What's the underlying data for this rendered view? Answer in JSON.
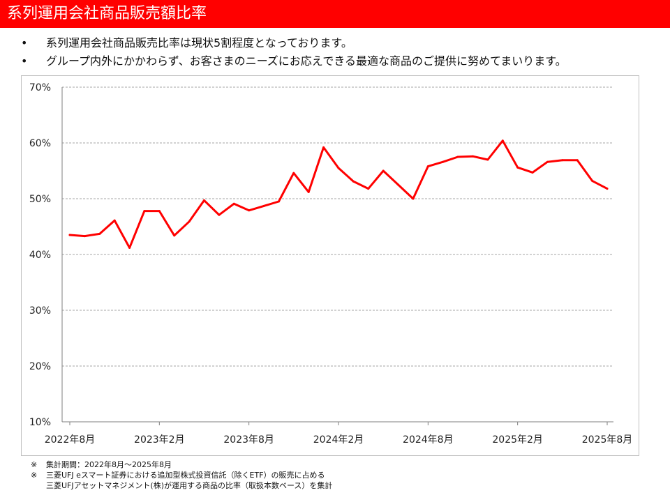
{
  "header": {
    "title": "系列運用会社商品販売額比率"
  },
  "bullets": [
    "系列運用会社商品販売比率は現状5割程度となっております。",
    "グループ内外にかかわらず、お客さまのニーズにお応えできる最適な商品のご提供に努めてまいります。"
  ],
  "bullet_mark": "•",
  "notes": [
    {
      "mark": "※",
      "lines": [
        "集計期間：2022年8月～2025年8月"
      ]
    },
    {
      "mark": "※",
      "lines": [
        "三菱UFJ eスマート証券における追加型株式投資信託（除くETF）の販売に占める",
        "三菱UFJアセットマネジメント(株)が運用する商品の比率（取扱本数ベース）を集計"
      ]
    }
  ],
  "chart_data": {
    "type": "line",
    "line_color": "#ff0000",
    "grid": true,
    "ylim": [
      10,
      70
    ],
    "yticks": [
      10,
      20,
      30,
      40,
      50,
      60,
      70
    ],
    "ytick_labels": [
      "10%",
      "20%",
      "30%",
      "40%",
      "50%",
      "60%",
      "70%"
    ],
    "xtick_indices": [
      0,
      6,
      12,
      18,
      24,
      30,
      36
    ],
    "xtick_labels": [
      "2022年8月",
      "2023年2月",
      "2023年8月",
      "2024年2月",
      "2024年8月",
      "2025年2月",
      "2025年8月"
    ],
    "x": [
      "2022-08",
      "2022-09",
      "2022-10",
      "2022-11",
      "2022-12",
      "2023-01",
      "2023-02",
      "2023-03",
      "2023-04",
      "2023-05",
      "2023-06",
      "2023-07",
      "2023-08",
      "2023-09",
      "2023-10",
      "2023-11",
      "2023-12",
      "2024-01",
      "2024-02",
      "2024-03",
      "2024-04",
      "2024-05",
      "2024-06",
      "2024-07",
      "2024-08",
      "2024-09",
      "2024-10",
      "2024-11",
      "2024-12",
      "2025-01",
      "2025-02",
      "2025-03",
      "2025-04",
      "2025-05",
      "2025-06",
      "2025-07",
      "2025-08"
    ],
    "values": [
      43.5,
      43.3,
      43.7,
      46.1,
      41.2,
      47.8,
      47.8,
      43.4,
      45.9,
      49.7,
      47.1,
      49.1,
      47.9,
      48.7,
      49.5,
      54.6,
      51.2,
      59.2,
      55.5,
      53.1,
      51.8,
      55.0,
      52.5,
      50.0,
      55.8,
      56.6,
      57.5,
      57.6,
      57.0,
      60.4,
      55.6,
      54.7,
      56.6,
      56.9,
      56.9,
      53.2,
      51.8
    ]
  }
}
